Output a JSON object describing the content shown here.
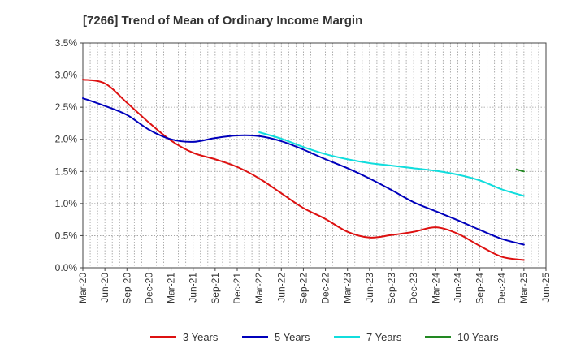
{
  "chart_data": {
    "type": "line",
    "title": "[7266]  Trend of Mean of Ordinary Income Margin",
    "xlabel": "",
    "ylabel": "",
    "ylim": [
      0,
      3.5
    ],
    "yticks": [
      0,
      0.5,
      1.0,
      1.5,
      2.0,
      2.5,
      3.0,
      3.5
    ],
    "ytick_labels": [
      "0.0%",
      "0.5%",
      "1.0%",
      "1.5%",
      "2.0%",
      "2.5%",
      "3.0%",
      "3.5%"
    ],
    "xticks": [
      "Mar-20",
      "Jun-20",
      "Sep-20",
      "Dec-20",
      "Mar-21",
      "Jun-21",
      "Sep-21",
      "Dec-21",
      "Mar-22",
      "Jun-22",
      "Sep-22",
      "Dec-22",
      "Mar-23",
      "Jun-23",
      "Sep-23",
      "Dec-23",
      "Mar-24",
      "Jun-24",
      "Sep-24",
      "Dec-24",
      "Mar-25",
      "Jun-25"
    ],
    "grid": true,
    "legend_position": "bottom",
    "series": [
      {
        "name": "3 Years",
        "color": "#dd1111",
        "values": [
          [
            "Mar-20",
            2.93
          ],
          [
            "Jun-20",
            2.87
          ],
          [
            "Sep-20",
            2.57
          ],
          [
            "Dec-20",
            2.26
          ],
          [
            "Mar-21",
            1.98
          ],
          [
            "Jun-21",
            1.79
          ],
          [
            "Sep-21",
            1.69
          ],
          [
            "Dec-21",
            1.57
          ],
          [
            "Mar-22",
            1.39
          ],
          [
            "Jun-22",
            1.16
          ],
          [
            "Sep-22",
            0.93
          ],
          [
            "Dec-22",
            0.76
          ],
          [
            "Mar-23",
            0.56
          ],
          [
            "Jun-23",
            0.47
          ],
          [
            "Sep-23",
            0.51
          ],
          [
            "Dec-23",
            0.56
          ],
          [
            "Mar-24",
            0.63
          ],
          [
            "Jun-24",
            0.53
          ],
          [
            "Sep-24",
            0.34
          ],
          [
            "Dec-24",
            0.17
          ],
          [
            "Mar-25",
            0.12
          ]
        ]
      },
      {
        "name": "5 Years",
        "color": "#0000bb",
        "values": [
          [
            "Mar-20",
            2.64
          ],
          [
            "Jun-20",
            2.52
          ],
          [
            "Sep-20",
            2.38
          ],
          [
            "Dec-20",
            2.15
          ],
          [
            "Mar-21",
            2.0
          ],
          [
            "Jun-21",
            1.96
          ],
          [
            "Sep-21",
            2.02
          ],
          [
            "Dec-21",
            2.06
          ],
          [
            "Mar-22",
            2.05
          ],
          [
            "Jun-22",
            1.97
          ],
          [
            "Sep-22",
            1.84
          ],
          [
            "Dec-22",
            1.69
          ],
          [
            "Mar-23",
            1.55
          ],
          [
            "Jun-23",
            1.39
          ],
          [
            "Sep-23",
            1.21
          ],
          [
            "Dec-23",
            1.02
          ],
          [
            "Mar-24",
            0.88
          ],
          [
            "Jun-24",
            0.74
          ],
          [
            "Sep-24",
            0.59
          ],
          [
            "Dec-24",
            0.45
          ],
          [
            "Mar-25",
            0.36
          ]
        ]
      },
      {
        "name": "7 Years",
        "color": "#11dddd",
        "values": [
          [
            "Mar-22",
            2.11
          ],
          [
            "Jun-22",
            2.01
          ],
          [
            "Sep-22",
            1.88
          ],
          [
            "Dec-22",
            1.77
          ],
          [
            "Mar-23",
            1.69
          ],
          [
            "Jun-23",
            1.63
          ],
          [
            "Sep-23",
            1.59
          ],
          [
            "Dec-23",
            1.55
          ],
          [
            "Mar-24",
            1.51
          ],
          [
            "Jun-24",
            1.45
          ],
          [
            "Sep-24",
            1.36
          ],
          [
            "Dec-24",
            1.22
          ],
          [
            "Mar-25",
            1.12
          ]
        ]
      },
      {
        "name": "10 Years",
        "color": "#228822",
        "values": [
          [
            "Feb-25",
            1.53
          ],
          [
            "Mar-25",
            1.5
          ]
        ]
      }
    ]
  }
}
